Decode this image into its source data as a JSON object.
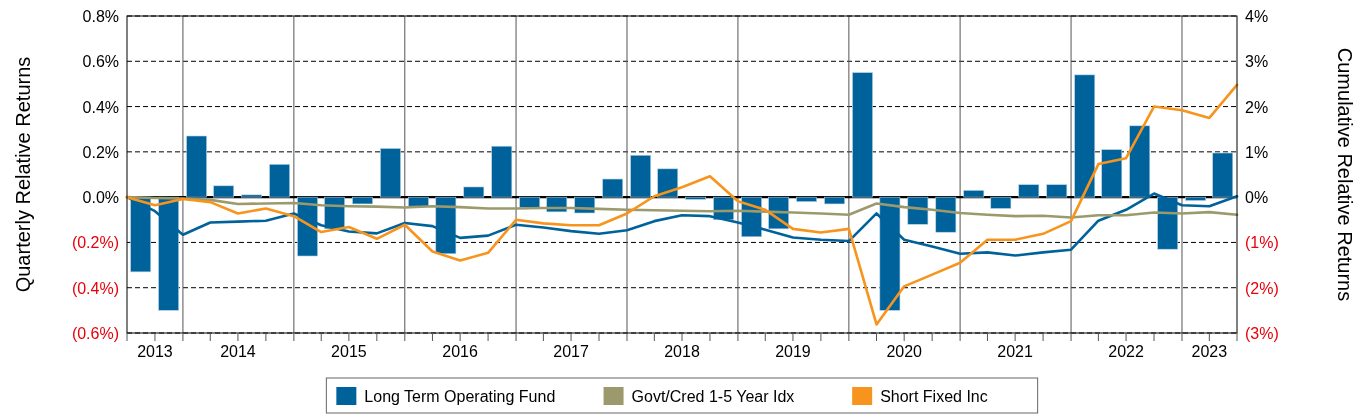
{
  "chart_data": {
    "type": "bar",
    "ylabel": "Quarterly Relative Returns",
    "y2label": "Cumulative Relative Returns",
    "xlim": [
      "2013-07-01",
      "2023-07-01"
    ],
    "xticks": [
      {
        "value": "2013-10-01",
        "label": "2013"
      },
      {
        "value": "2014-07-01",
        "label": "2014"
      },
      {
        "value": "2015-07-01",
        "label": "2015"
      },
      {
        "value": "2016-07-01",
        "label": "2016"
      },
      {
        "value": "2017-07-01",
        "label": "2017"
      },
      {
        "value": "2018-07-01",
        "label": "2018"
      },
      {
        "value": "2019-07-01",
        "label": "2019"
      },
      {
        "value": "2020-07-01",
        "label": "2020"
      },
      {
        "value": "2021-07-01",
        "label": "2021"
      },
      {
        "value": "2022-07-01",
        "label": "2022"
      },
      {
        "value": "2023-04-01",
        "label": "2023"
      },
      {
        "value": "2013-07-01",
        "label": null
      },
      {
        "value": "2013-10-01",
        "label": null
      },
      {
        "value": "2014-01-01",
        "label": null
      },
      {
        "value": "2014-04-01",
        "label": null
      },
      {
        "value": "2014-07-01",
        "label": null
      },
      {
        "value": "2014-10-01",
        "label": null
      },
      {
        "value": "2015-01-01",
        "label": null
      },
      {
        "value": "2015-04-01",
        "label": null
      },
      {
        "value": "2015-07-01",
        "label": null
      },
      {
        "value": "2015-10-01",
        "label": null
      },
      {
        "value": "2016-01-01",
        "label": null
      },
      {
        "value": "2016-04-01",
        "label": null
      },
      {
        "value": "2016-07-01",
        "label": null
      },
      {
        "value": "2016-10-01",
        "label": null
      },
      {
        "value": "2017-01-01",
        "label": null
      },
      {
        "value": "2017-04-01",
        "label": null
      },
      {
        "value": "2017-07-01",
        "label": null
      },
      {
        "value": "2017-10-01",
        "label": null
      },
      {
        "value": "2018-01-01",
        "label": null
      },
      {
        "value": "2018-04-01",
        "label": null
      },
      {
        "value": "2018-07-01",
        "label": null
      },
      {
        "value": "2018-10-01",
        "label": null
      },
      {
        "value": "2019-01-01",
        "label": null
      },
      {
        "value": "2019-04-01",
        "label": null
      },
      {
        "value": "2019-07-01",
        "label": null
      },
      {
        "value": "2019-10-01",
        "label": null
      },
      {
        "value": "2020-01-01",
        "label": null
      },
      {
        "value": "2020-04-01",
        "label": null
      },
      {
        "value": "2020-07-01",
        "label": null
      },
      {
        "value": "2020-10-01",
        "label": null
      },
      {
        "value": "2021-01-01",
        "label": null
      },
      {
        "value": "2021-04-01",
        "label": null
      },
      {
        "value": "2021-07-01",
        "label": null
      },
      {
        "value": "2021-10-01",
        "label": null
      },
      {
        "value": "2022-01-01",
        "label": null
      },
      {
        "value": "2022-04-01",
        "label": null
      },
      {
        "value": "2022-07-01",
        "label": null
      },
      {
        "value": "2022-10-01",
        "label": null
      },
      {
        "value": "2023-01-01",
        "label": null
      },
      {
        "value": "2023-04-01",
        "label": null
      },
      {
        "value": "2023-07-01",
        "label": null
      }
    ],
    "ylim": [
      -0.6,
      0.8
    ],
    "yticks": [
      {
        "value": -0.6,
        "label": "(0.6%)"
      },
      {
        "value": -0.4,
        "label": "(0.4%)"
      },
      {
        "value": -0.2,
        "label": "(0.2%)"
      },
      {
        "value": 0,
        "label": "0.0%"
      },
      {
        "value": 0.2,
        "label": "0.2%"
      },
      {
        "value": 0.4,
        "label": "0.4%"
      },
      {
        "value": 0.6,
        "label": "0.6%"
      },
      {
        "value": 0.8,
        "label": "0.8%"
      }
    ],
    "y2lim": [
      -3,
      4
    ],
    "y2ticks": [
      {
        "value": -3,
        "label": "(3%)"
      },
      {
        "value": -2,
        "label": "(2%)"
      },
      {
        "value": -1,
        "label": "(1%)"
      },
      {
        "value": 0,
        "label": "0%"
      },
      {
        "value": 1,
        "label": "1%"
      },
      {
        "value": 2,
        "label": "2%"
      },
      {
        "value": 3,
        "label": "3%"
      },
      {
        "value": 4,
        "label": "4%"
      }
    ],
    "grid": true,
    "legend": "bottom",
    "series": [
      {
        "name": "Long Term Operating Fund",
        "color": "#00629b",
        "x": [
          "2013-08-15",
          "2013-11-15",
          "2014-02-15",
          "2014-05-15",
          "2014-08-15",
          "2014-11-15",
          "2015-02-15",
          "2015-05-15",
          "2015-08-15",
          "2015-11-15",
          "2016-02-15",
          "2016-05-15",
          "2016-08-15",
          "2016-11-15",
          "2017-02-15",
          "2017-05-15",
          "2017-08-15",
          "2017-11-15",
          "2018-02-15",
          "2018-05-15",
          "2018-08-15",
          "2018-11-15",
          "2019-02-15",
          "2019-05-15",
          "2019-08-15",
          "2019-11-15",
          "2020-02-15",
          "2020-05-15",
          "2020-08-15",
          "2020-11-15",
          "2021-02-15",
          "2021-05-15",
          "2021-08-15",
          "2021-11-15",
          "2022-02-15",
          "2022-05-15",
          "2022-08-15",
          "2022-11-15",
          "2023-02-15",
          "2023-05-15"
        ],
        "values": [
          -0.33,
          -0.5,
          0.27,
          0.05,
          0.01,
          0.145,
          -0.26,
          -0.14,
          -0.03,
          0.215,
          -0.04,
          -0.25,
          0.045,
          0.225,
          -0.045,
          -0.065,
          -0.07,
          0.08,
          0.185,
          0.125,
          -0.01,
          -0.1,
          -0.175,
          -0.14,
          -0.02,
          -0.03,
          0.55,
          -0.5,
          -0.12,
          -0.155,
          0.03,
          -0.05,
          0.055,
          0.055,
          0.54,
          0.21,
          0.315,
          -0.23,
          -0.015,
          0.195
        ]
      },
      {
        "type": "line",
        "axis": "y2",
        "color": "#00629b",
        "x": [
          "2013-07-01",
          "2013-10-01",
          "2014-01-01",
          "2014-04-01",
          "2014-07-01",
          "2014-10-01",
          "2015-01-01",
          "2015-04-01",
          "2015-07-01",
          "2015-10-01",
          "2016-01-01",
          "2016-04-01",
          "2016-07-01",
          "2016-10-01",
          "2017-01-01",
          "2017-04-01",
          "2017-07-01",
          "2017-10-01",
          "2018-01-01",
          "2018-04-01",
          "2018-07-01",
          "2018-10-01",
          "2019-01-01",
          "2019-04-01",
          "2019-07-01",
          "2019-10-01",
          "2020-01-01",
          "2020-04-01",
          "2020-07-01",
          "2020-10-01",
          "2021-01-01",
          "2021-04-01",
          "2021-07-01",
          "2021-10-01",
          "2022-01-01",
          "2022-04-01",
          "2022-07-01",
          "2022-10-01",
          "2023-01-01",
          "2023-04-01",
          "2023-07-01"
        ],
        "values": [
          0,
          -0.31,
          -0.83,
          -0.56,
          -0.54,
          -0.52,
          -0.36,
          -0.62,
          -0.76,
          -0.8,
          -0.57,
          -0.64,
          -0.9,
          -0.85,
          -0.61,
          -0.67,
          -0.75,
          -0.81,
          -0.73,
          -0.53,
          -0.4,
          -0.42,
          -0.56,
          -0.72,
          -0.89,
          -0.94,
          -0.97,
          -0.36,
          -0.94,
          -1.09,
          -1.25,
          -1.22,
          -1.29,
          -1.22,
          -1.16,
          -0.52,
          -0.28,
          0.08,
          -0.18,
          -0.2,
          0.02
        ]
      },
      {
        "name": "Govt/Cred 1-5 Year Idx",
        "type": "line",
        "axis": "y2",
        "color": "#9c9a6c",
        "x": [
          "2013-07-01",
          "2013-10-01",
          "2014-01-01",
          "2014-04-01",
          "2014-07-01",
          "2014-10-01",
          "2015-01-01",
          "2015-04-01",
          "2015-07-01",
          "2015-10-01",
          "2016-01-01",
          "2016-04-01",
          "2016-07-01",
          "2016-10-01",
          "2017-01-01",
          "2017-04-01",
          "2017-07-01",
          "2017-10-01",
          "2018-01-01",
          "2018-04-01",
          "2018-07-01",
          "2018-10-01",
          "2019-01-01",
          "2019-04-01",
          "2019-07-01",
          "2019-10-01",
          "2020-01-01",
          "2020-04-01",
          "2020-07-01",
          "2020-10-01",
          "2021-01-01",
          "2021-04-01",
          "2021-07-01",
          "2021-10-01",
          "2022-01-01",
          "2022-04-01",
          "2022-07-01",
          "2022-10-01",
          "2023-01-01",
          "2023-04-01",
          "2023-07-01"
        ],
        "values": [
          0,
          -0.02,
          -0.03,
          -0.06,
          -0.15,
          -0.14,
          -0.13,
          -0.18,
          -0.2,
          -0.21,
          -0.23,
          -0.2,
          -0.22,
          -0.25,
          -0.25,
          -0.24,
          -0.24,
          -0.26,
          -0.28,
          -0.29,
          -0.3,
          -0.31,
          -0.3,
          -0.32,
          -0.34,
          -0.36,
          -0.39,
          -0.14,
          -0.22,
          -0.28,
          -0.35,
          -0.39,
          -0.42,
          -0.41,
          -0.45,
          -0.4,
          -0.4,
          -0.34,
          -0.36,
          -0.33,
          -0.39
        ]
      },
      {
        "name": "Short Fixed Inc",
        "type": "line",
        "axis": "y2",
        "color": "#f7941d",
        "x": [
          "2013-07-01",
          "2013-10-01",
          "2014-01-01",
          "2014-04-01",
          "2014-07-01",
          "2014-10-01",
          "2015-01-01",
          "2015-04-01",
          "2015-07-01",
          "2015-10-01",
          "2016-01-01",
          "2016-04-01",
          "2016-07-01",
          "2016-10-01",
          "2017-01-01",
          "2017-04-01",
          "2017-07-01",
          "2017-10-01",
          "2018-01-01",
          "2018-04-01",
          "2018-07-01",
          "2018-10-01",
          "2019-01-01",
          "2019-04-01",
          "2019-07-01",
          "2019-10-01",
          "2020-01-01",
          "2020-04-01",
          "2020-07-01",
          "2020-10-01",
          "2021-01-01",
          "2021-04-01",
          "2021-07-01",
          "2021-10-01",
          "2022-01-01",
          "2022-04-01",
          "2022-07-01",
          "2022-10-01",
          "2023-01-01",
          "2023-04-01",
          "2023-07-01"
        ],
        "values": [
          0,
          -0.18,
          -0.04,
          -0.11,
          -0.36,
          -0.25,
          -0.42,
          -0.77,
          -0.66,
          -0.92,
          -0.61,
          -1.2,
          -1.4,
          -1.23,
          -0.5,
          -0.58,
          -0.62,
          -0.62,
          -0.36,
          0.02,
          0.22,
          0.46,
          -0.09,
          -0.28,
          -0.7,
          -0.78,
          -0.7,
          -2.81,
          -1.97,
          -1.71,
          -1.45,
          -0.94,
          -0.94,
          -0.81,
          -0.53,
          0.73,
          0.86,
          2.0,
          1.92,
          1.75,
          2.48
        ]
      }
    ]
  }
}
